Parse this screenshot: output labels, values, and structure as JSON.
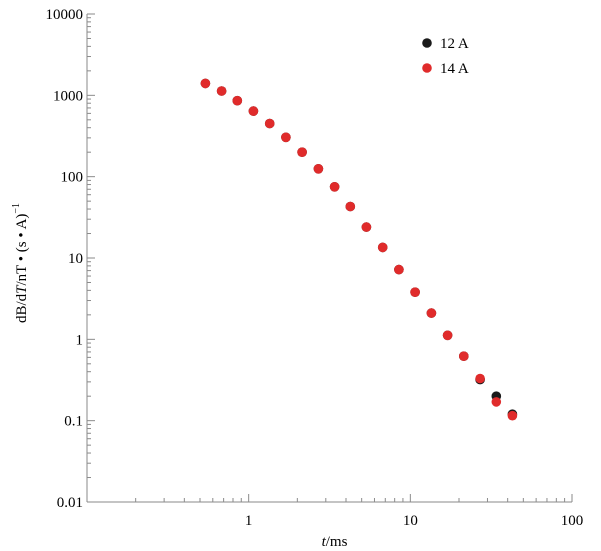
{
  "chart_data": {
    "type": "scatter",
    "xscale": "log",
    "yscale": "log",
    "xlim": [
      0.1,
      100
    ],
    "ylim": [
      0.01,
      10000
    ],
    "x_ticks": [
      {
        "value": 1,
        "label": "1"
      },
      {
        "value": 10,
        "label": "10"
      },
      {
        "value": 100,
        "label": "100"
      }
    ],
    "y_ticks": [
      {
        "value": 0.01,
        "label": "0.01"
      },
      {
        "value": 0.1,
        "label": "0.1"
      },
      {
        "value": 1,
        "label": "1"
      },
      {
        "value": 10,
        "label": "10"
      },
      {
        "value": 100,
        "label": "100"
      },
      {
        "value": 1000,
        "label": "1000"
      },
      {
        "value": 10000,
        "label": "10000"
      }
    ],
    "xlabel": {
      "italic": "t",
      "rest": "/ms"
    },
    "ylabel": {
      "pre": "dB/d",
      "italic": "T",
      "post": "/nT • (s • A)",
      "sup": "−1"
    },
    "grid": false,
    "legend": "top-right",
    "series": [
      {
        "name": "12 A",
        "color": "#1a1a1a",
        "x": [
          0.54,
          0.68,
          0.85,
          1.07,
          1.35,
          1.7,
          2.14,
          2.7,
          3.4,
          4.25,
          5.35,
          6.75,
          8.5,
          10.7,
          13.5,
          17.0,
          21.4,
          27.0,
          34.0,
          42.8
        ],
        "y": [
          1400,
          1130,
          860,
          640,
          450,
          305,
          200,
          125,
          75,
          43,
          24,
          13.5,
          7.2,
          3.8,
          2.1,
          1.12,
          0.62,
          0.32,
          0.2,
          0.12
        ]
      },
      {
        "name": "14 A",
        "color": "#e02b2b",
        "x": [
          0.54,
          0.68,
          0.85,
          1.07,
          1.35,
          1.7,
          2.14,
          2.7,
          3.4,
          4.25,
          5.35,
          6.75,
          8.5,
          10.7,
          13.5,
          17.0,
          21.4,
          27.0,
          34.0,
          42.8
        ],
        "y": [
          1400,
          1130,
          860,
          640,
          450,
          305,
          200,
          125,
          75,
          43,
          24,
          13.5,
          7.2,
          3.8,
          2.1,
          1.12,
          0.62,
          0.33,
          0.17,
          0.115
        ]
      }
    ]
  }
}
